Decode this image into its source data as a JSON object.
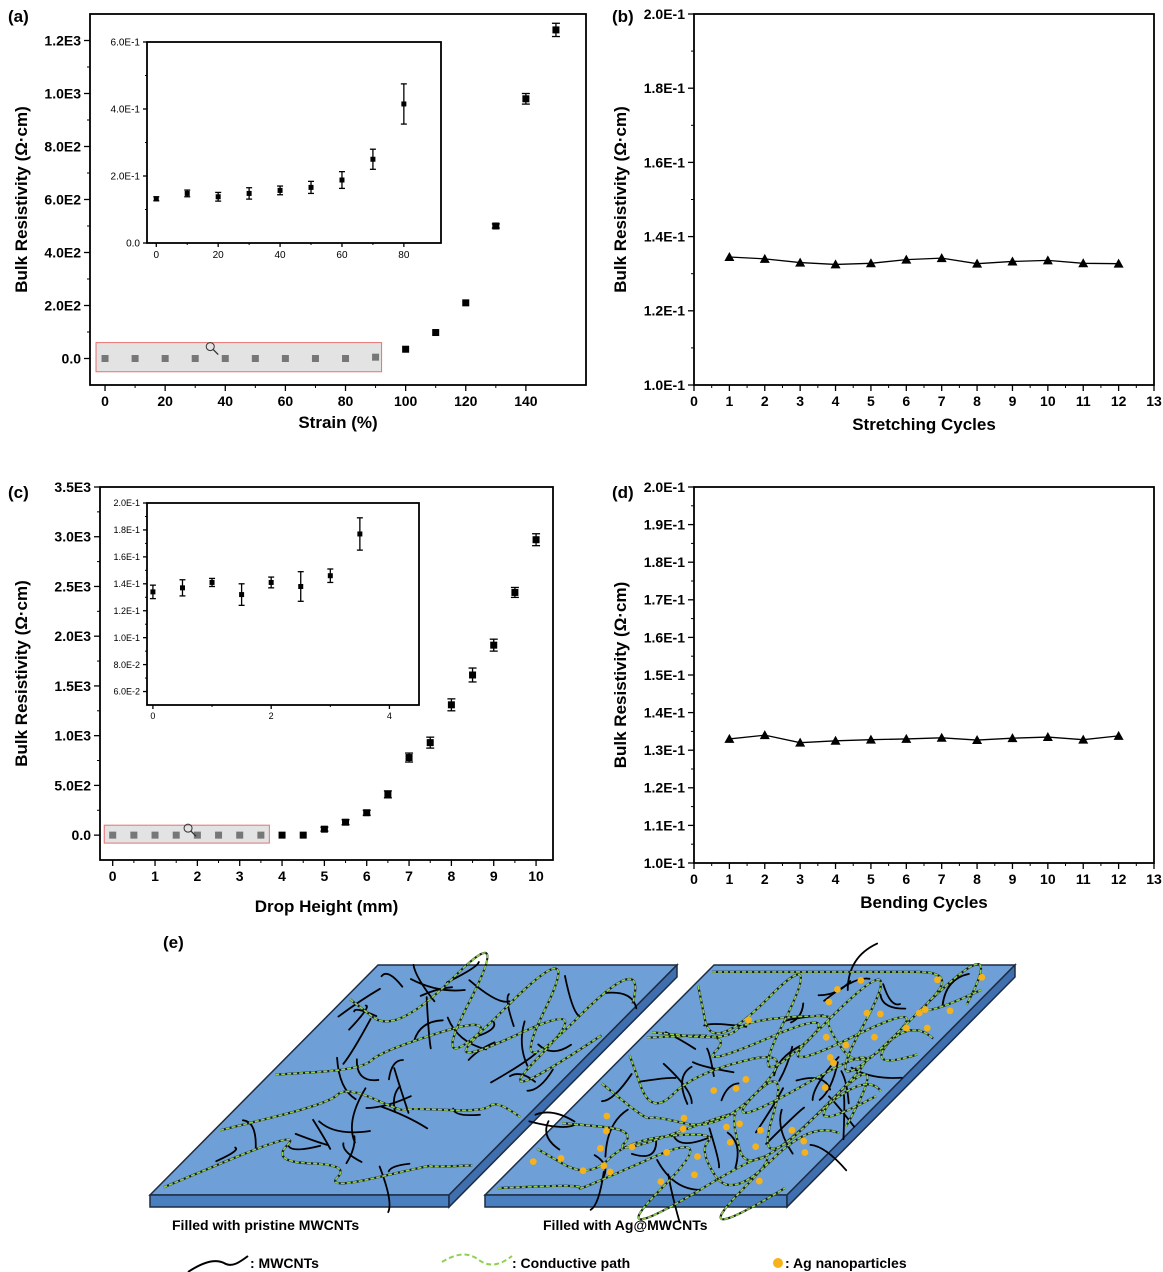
{
  "panels": {
    "a": {
      "tag": "(a)",
      "chart_data": {
        "type": "scatter",
        "xlabel": "Strain (%)",
        "ylabel": "Bulk Resistivity (Ω·cm)",
        "xlim": [
          -5,
          160
        ],
        "ylim": [
          -100,
          1300
        ],
        "xticks": [
          0,
          20,
          40,
          60,
          80,
          100,
          120,
          140
        ],
        "yticks": [
          0,
          200,
          400,
          600,
          800,
          1000,
          1200
        ],
        "ytick_labels": [
          "0.0",
          "2.0E2",
          "4.0E2",
          "6.0E2",
          "8.0E2",
          "1.0E3",
          "1.2E3"
        ],
        "points": [
          {
            "x": 0,
            "y": 0
          },
          {
            "x": 10,
            "y": 0
          },
          {
            "x": 20,
            "y": 0
          },
          {
            "x": 30,
            "y": 0
          },
          {
            "x": 40,
            "y": 0
          },
          {
            "x": 50,
            "y": 0
          },
          {
            "x": 60,
            "y": 0
          },
          {
            "x": 70,
            "y": 0
          },
          {
            "x": 80,
            "y": 0
          },
          {
            "x": 90,
            "y": 5
          },
          {
            "x": 100,
            "y": 35
          },
          {
            "x": 110,
            "y": 98
          },
          {
            "x": 120,
            "y": 210
          },
          {
            "x": 130,
            "y": 500,
            "err": 8
          },
          {
            "x": 140,
            "y": 980,
            "err": 20
          },
          {
            "x": 150,
            "y": 1240,
            "err": 25
          }
        ],
        "highlight_box": {
          "x0": -3,
          "x1": 92,
          "y0": -50,
          "y1": 60
        }
      },
      "inset": {
        "xlim": [
          -3,
          92
        ],
        "ylim": [
          0,
          0.6
        ],
        "xticks": [
          0,
          20,
          40,
          60,
          80
        ],
        "yticks": [
          0,
          0.2,
          0.4,
          0.6
        ],
        "ytick_labels": [
          "0.0",
          "2.0E-1",
          "4.0E-1",
          "6.0E-1"
        ],
        "points": [
          {
            "x": 0,
            "y": 0.132,
            "err": 0.006
          },
          {
            "x": 10,
            "y": 0.148,
            "err": 0.01
          },
          {
            "x": 20,
            "y": 0.138,
            "err": 0.013
          },
          {
            "x": 30,
            "y": 0.148,
            "err": 0.017
          },
          {
            "x": 40,
            "y": 0.157,
            "err": 0.013
          },
          {
            "x": 50,
            "y": 0.166,
            "err": 0.018
          },
          {
            "x": 60,
            "y": 0.188,
            "err": 0.025
          },
          {
            "x": 70,
            "y": 0.25,
            "err": 0.03
          },
          {
            "x": 80,
            "y": 0.415,
            "err": 0.06
          }
        ]
      }
    },
    "b": {
      "tag": "(b)",
      "chart_data": {
        "type": "line",
        "xlabel": "Stretching Cycles",
        "ylabel": "Bulk Resistivity (Ω·cm)",
        "xlim": [
          0,
          13
        ],
        "ylim": [
          0.1,
          0.2
        ],
        "xticks": [
          0,
          1,
          2,
          3,
          4,
          5,
          6,
          7,
          8,
          9,
          10,
          11,
          12,
          13
        ],
        "yticks": [
          0.1,
          0.12,
          0.14,
          0.16,
          0.18,
          0.2
        ],
        "ytick_labels": [
          "1.0E-1",
          "1.2E-1",
          "1.4E-1",
          "1.6E-1",
          "1.8E-1",
          "2.0E-1"
        ],
        "x": [
          1,
          2,
          3,
          4,
          5,
          6,
          7,
          8,
          9,
          10,
          11,
          12
        ],
        "y": [
          0.1345,
          0.134,
          0.133,
          0.1325,
          0.1328,
          0.1338,
          0.1342,
          0.1327,
          0.1333,
          0.1336,
          0.1328,
          0.1327
        ]
      }
    },
    "c": {
      "tag": "(c)",
      "chart_data": {
        "type": "scatter",
        "xlabel": "Drop Height (mm)",
        "ylabel": "Bulk Resistivity (Ω·cm)",
        "xlim": [
          -0.3,
          10.4
        ],
        "ylim": [
          -250,
          3500
        ],
        "xticks": [
          0,
          1,
          2,
          3,
          4,
          5,
          6,
          7,
          8,
          9,
          10
        ],
        "yticks": [
          0,
          500,
          1000,
          1500,
          2000,
          2500,
          3000,
          3500
        ],
        "ytick_labels": [
          "0.0",
          "5.0E2",
          "1.0E3",
          "1.5E3",
          "2.0E3",
          "2.5E3",
          "3.0E3",
          "3.5E3"
        ],
        "points": [
          {
            "x": 0,
            "y": 0
          },
          {
            "x": 0.5,
            "y": 0
          },
          {
            "x": 1,
            "y": 0
          },
          {
            "x": 1.5,
            "y": 0
          },
          {
            "x": 2,
            "y": 0
          },
          {
            "x": 2.5,
            "y": 0
          },
          {
            "x": 3,
            "y": 0
          },
          {
            "x": 3.5,
            "y": 0
          },
          {
            "x": 4,
            "y": 0
          },
          {
            "x": 4.5,
            "y": 0
          },
          {
            "x": 5,
            "y": 60,
            "err": 20
          },
          {
            "x": 5.5,
            "y": 130,
            "err": 25
          },
          {
            "x": 6,
            "y": 225,
            "err": 25
          },
          {
            "x": 6.5,
            "y": 410,
            "err": 35
          },
          {
            "x": 7,
            "y": 780,
            "err": 45
          },
          {
            "x": 7.5,
            "y": 930,
            "err": 55
          },
          {
            "x": 8,
            "y": 1310,
            "err": 60
          },
          {
            "x": 8.5,
            "y": 1610,
            "err": 70
          },
          {
            "x": 9,
            "y": 1910,
            "err": 60
          },
          {
            "x": 9.5,
            "y": 2440,
            "err": 50
          },
          {
            "x": 10,
            "y": 2970,
            "err": 60
          }
        ],
        "highlight_box": {
          "x0": -0.2,
          "x1": 3.7,
          "y0": -80,
          "y1": 100
        }
      },
      "inset": {
        "xlim": [
          -0.1,
          4.5
        ],
        "ylim": [
          0.05,
          0.2
        ],
        "xticks": [
          0,
          2,
          4
        ],
        "yticks": [
          0.06,
          0.08,
          0.1,
          0.12,
          0.14,
          0.16,
          0.18,
          0.2
        ],
        "ytick_labels": [
          "6.0E-2",
          "8.0E-2",
          "1.0E-1",
          "1.2E-1",
          "1.4E-1",
          "1.6E-1",
          "1.8E-1",
          "2.0E-1"
        ],
        "points": [
          {
            "x": 0,
            "y": 0.134,
            "err": 0.005
          },
          {
            "x": 0.5,
            "y": 0.137,
            "err": 0.006
          },
          {
            "x": 1,
            "y": 0.141,
            "err": 0.003
          },
          {
            "x": 1.5,
            "y": 0.132,
            "err": 0.008
          },
          {
            "x": 2,
            "y": 0.141,
            "err": 0.004
          },
          {
            "x": 2.5,
            "y": 0.138,
            "err": 0.011
          },
          {
            "x": 3,
            "y": 0.146,
            "err": 0.005
          },
          {
            "x": 3.5,
            "y": 0.177,
            "err": 0.012
          }
        ]
      }
    },
    "d": {
      "tag": "(d)",
      "chart_data": {
        "type": "line",
        "xlabel": "Bending Cycles",
        "ylabel": "Bulk Resistivity (Ω·cm)",
        "xlim": [
          0,
          13
        ],
        "ylim": [
          0.1,
          0.2
        ],
        "xticks": [
          0,
          1,
          2,
          3,
          4,
          5,
          6,
          7,
          8,
          9,
          10,
          11,
          12,
          13
        ],
        "yticks": [
          0.1,
          0.11,
          0.12,
          0.13,
          0.14,
          0.15,
          0.16,
          0.17,
          0.18,
          0.19,
          0.2
        ],
        "ytick_labels": [
          "1.0E-1",
          "1.1E-1",
          "1.2E-1",
          "1.3E-1",
          "1.4E-1",
          "1.5E-1",
          "1.6E-1",
          "1.7E-1",
          "1.8E-1",
          "1.9E-1",
          "2.0E-1"
        ],
        "x": [
          1,
          2,
          3,
          4,
          5,
          6,
          7,
          8,
          9,
          10,
          11,
          12
        ],
        "y": [
          0.133,
          0.134,
          0.132,
          0.1325,
          0.1328,
          0.133,
          0.1333,
          0.1327,
          0.1332,
          0.1335,
          0.1328,
          0.1338
        ]
      }
    }
  },
  "schematic": {
    "tag": "(e)",
    "left_caption": "Filled with pristine MWCNTs",
    "right_caption": "Filled with Ag@MWCNTs",
    "legend": {
      "mwcnt": ": MWCNTs",
      "path": ": Conductive path",
      "ag": ": Ag nanoparticles"
    },
    "colors": {
      "slab_top": "#6e9fd6",
      "slab_edge": "#4a7fc0",
      "path": "#8fd14f",
      "ag": "#f5b21b",
      "highlight_fill": "#e3e3e3",
      "highlight_border": "#e57373"
    }
  }
}
